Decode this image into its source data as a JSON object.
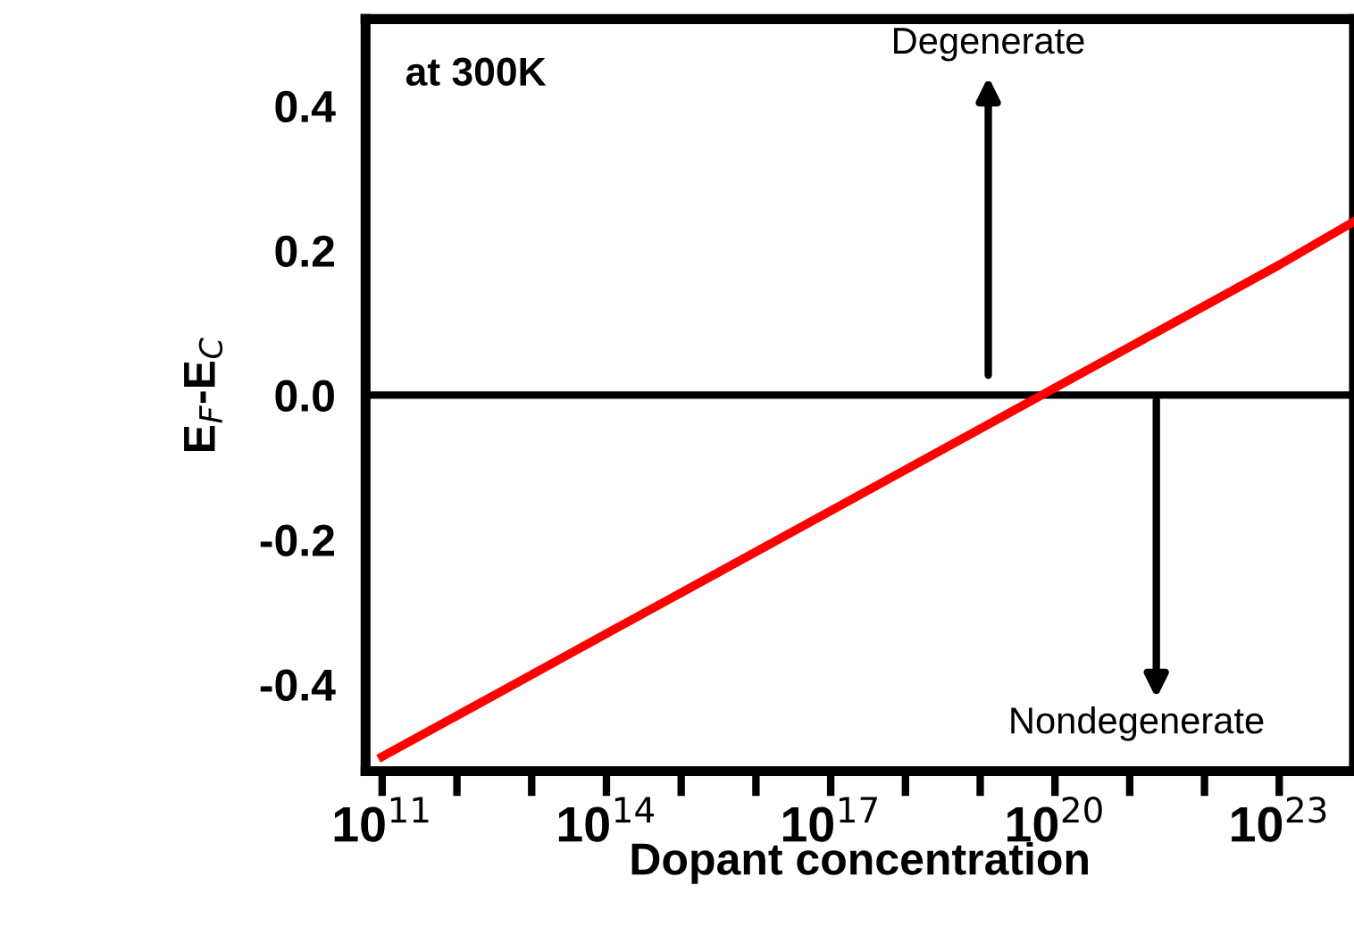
{
  "chart_data": {
    "type": "line",
    "xlabel": "Dopant concentration",
    "ylabel": "E$_{F}$-E$_{C}$",
    "x": [
      100000000000.0,
      100000000000000.0,
      1e+17,
      1e+20,
      1e+23,
      1e+24
    ],
    "series": [
      {
        "color": "#ff0000",
        "values": [
          -0.5,
          -0.33,
          -0.16,
          0.01,
          0.18,
          0.24
        ]
      }
    ],
    "log": "x",
    "xlim": [
      60000000000.0,
      1e+24
    ],
    "ylim": [
      -0.52,
      0.52
    ],
    "xticks": [
      {
        "value": 100000000000.0,
        "label": "10$^{11}$"
      },
      {
        "value": 1000000000000.0,
        "label": null
      },
      {
        "value": 10000000000000.0,
        "label": null
      },
      {
        "value": 100000000000000.0,
        "label": "10$^{14}$"
      },
      {
        "value": 1000000000000000.0,
        "label": null
      },
      {
        "value": 1e+16,
        "label": null
      },
      {
        "value": 1e+17,
        "label": "10$^{17}$"
      },
      {
        "value": 1e+18,
        "label": null
      },
      {
        "value": 1e+19,
        "label": null
      },
      {
        "value": 1e+20,
        "label": "10$^{20}$"
      },
      {
        "value": 1e+21,
        "label": null
      },
      {
        "value": 1e+22,
        "label": null
      },
      {
        "value": 1e+23,
        "label": "10$^{23}$"
      }
    ],
    "yticks": [
      {
        "value": 0.4,
        "label": "0.4"
      },
      {
        "value": 0.2,
        "label": "0.2"
      },
      {
        "value": 0.0,
        "label": "0.0"
      },
      {
        "value": -0.2,
        "label": "-0.2"
      },
      {
        "value": -0.4,
        "label": "-0.4"
      }
    ],
    "ref_lines": [
      {
        "axis": "y",
        "value": 0,
        "color": "#000000"
      }
    ],
    "annotations": [
      "at 300K",
      "Degenerate",
      "Nondegenerate"
    ],
    "grid": false,
    "legend": false,
    "marker": "none",
    "line_style": "solid"
  }
}
